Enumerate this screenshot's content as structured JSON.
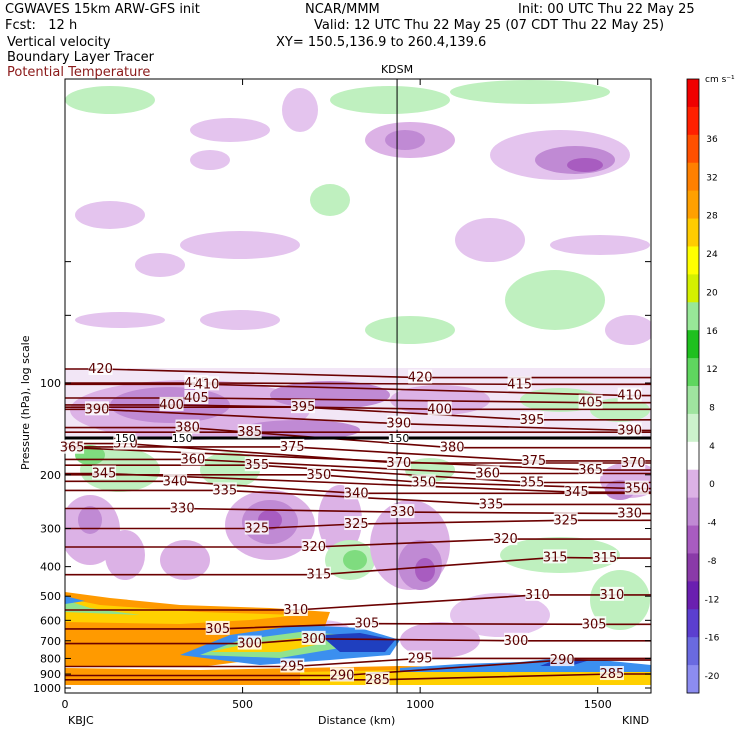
{
  "header": {
    "model": "CGWAVES 15km ARW-GFS init",
    "org": "NCAR/MMM",
    "init": "Init: 00 UTC Thu 22 May 25",
    "fcst": "Fcst:   12 h",
    "valid": "Valid: 12 UTC Thu 22 May 25 (07 CDT Thu 22 May 25)",
    "field1": "Vertical velocity",
    "field2": "Boundary Layer Tracer",
    "field3": "Potential Temperature",
    "xy": "XY= 150.5,136.9 to 260.4,139.6"
  },
  "colors": {
    "theta_contour": "#6b0000",
    "title_red": "#8b1a1a"
  },
  "chart_data": {
    "type": "cross-section",
    "xlabel": "Distance (km)",
    "ylabel": "Pressure (hPa), log scale",
    "xlim": [
      0,
      1650
    ],
    "x_ticks": [
      0,
      500,
      1000,
      1500
    ],
    "y_ticks": [
      100,
      200,
      300,
      400,
      500,
      600,
      700,
      800,
      900,
      1000
    ],
    "y_scale": "log",
    "left_station": "KBJC",
    "right_station": "KIND",
    "marker_station": "KDSM",
    "marker_x_km": 935,
    "colorbar": {
      "unit": "cm s⁻¹",
      "levels": [
        -20,
        -16,
        -12,
        -8,
        -4,
        0,
        4,
        8,
        12,
        16,
        20,
        24,
        28,
        32,
        36
      ],
      "colors": [
        "#8c8cf0",
        "#6a6ae0",
        "#5b3fcf",
        "#6a1fb0",
        "#8a3aa8",
        "#a85cc0",
        "#c08ad4",
        "#dcb2e6",
        "#ffffff",
        "#cdf2cd",
        "#9fe49f",
        "#5fd65f",
        "#1fc01f",
        "#98e898",
        "#d4f000",
        "#ffff00",
        "#ffcc00",
        "#ffa000",
        "#ff8000",
        "#ff5000",
        "#ff2000",
        "#f00000"
      ]
    },
    "theta_labels": [
      {
        "x": 100,
        "p": 90,
        "v": "420"
      },
      {
        "x": 90,
        "p": 122,
        "v": "390"
      },
      {
        "x": 370,
        "p": 100,
        "v": "415"
      },
      {
        "x": 400,
        "p": 101,
        "v": "410"
      },
      {
        "x": 1000,
        "p": 96,
        "v": "420"
      },
      {
        "x": 1280,
        "p": 101,
        "v": "415"
      },
      {
        "x": 1590,
        "p": 110,
        "v": "410"
      },
      {
        "x": 1480,
        "p": 116,
        "v": "405"
      },
      {
        "x": 370,
        "p": 112,
        "v": "405"
      },
      {
        "x": 300,
        "p": 118,
        "v": "400"
      },
      {
        "x": 1055,
        "p": 122,
        "v": "400"
      },
      {
        "x": 940,
        "p": 136,
        "v": "390"
      },
      {
        "x": 670,
        "p": 120,
        "v": "395"
      },
      {
        "x": 1315,
        "p": 132,
        "v": "395"
      },
      {
        "x": 1590,
        "p": 143,
        "v": "390"
      },
      {
        "x": 345,
        "p": 140,
        "v": "380"
      },
      {
        "x": 520,
        "p": 145,
        "v": "385"
      },
      {
        "x": 170,
        "p": 158,
        "v": "370"
      },
      {
        "x": 20,
        "p": 163,
        "v": "365"
      },
      {
        "x": 360,
        "p": 178,
        "v": "360"
      },
      {
        "x": 640,
        "p": 162,
        "v": "375"
      },
      {
        "x": 1090,
        "p": 163,
        "v": "380"
      },
      {
        "x": 940,
        "p": 183,
        "v": "370"
      },
      {
        "x": 1320,
        "p": 180,
        "v": "375"
      },
      {
        "x": 1480,
        "p": 193,
        "v": "365"
      },
      {
        "x": 1600,
        "p": 183,
        "v": "370"
      },
      {
        "x": 540,
        "p": 186,
        "v": "355"
      },
      {
        "x": 1190,
        "p": 198,
        "v": "360"
      },
      {
        "x": 110,
        "p": 198,
        "v": "345"
      },
      {
        "x": 310,
        "p": 210,
        "v": "340"
      },
      {
        "x": 715,
        "p": 200,
        "v": "350"
      },
      {
        "x": 1010,
        "p": 212,
        "v": "350"
      },
      {
        "x": 1315,
        "p": 212,
        "v": "355"
      },
      {
        "x": 1440,
        "p": 228,
        "v": "345"
      },
      {
        "x": 1610,
        "p": 222,
        "v": "350"
      },
      {
        "x": 450,
        "p": 225,
        "v": "335"
      },
      {
        "x": 820,
        "p": 230,
        "v": "340"
      },
      {
        "x": 1200,
        "p": 250,
        "v": "335"
      },
      {
        "x": 1590,
        "p": 268,
        "v": "330"
      },
      {
        "x": 330,
        "p": 258,
        "v": "330"
      },
      {
        "x": 950,
        "p": 265,
        "v": "330"
      },
      {
        "x": 1410,
        "p": 282,
        "v": "325"
      },
      {
        "x": 540,
        "p": 300,
        "v": "325"
      },
      {
        "x": 820,
        "p": 290,
        "v": "325"
      },
      {
        "x": 700,
        "p": 345,
        "v": "320"
      },
      {
        "x": 1240,
        "p": 325,
        "v": "320"
      },
      {
        "x": 1380,
        "p": 373,
        "v": "315"
      },
      {
        "x": 1520,
        "p": 375,
        "v": "315"
      },
      {
        "x": 715,
        "p": 425,
        "v": "315"
      },
      {
        "x": 1330,
        "p": 495,
        "v": "310"
      },
      {
        "x": 1540,
        "p": 495,
        "v": "310"
      },
      {
        "x": 650,
        "p": 555,
        "v": "310"
      },
      {
        "x": 850,
        "p": 615,
        "v": "305"
      },
      {
        "x": 1490,
        "p": 618,
        "v": "305"
      },
      {
        "x": 430,
        "p": 640,
        "v": "305"
      },
      {
        "x": 1270,
        "p": 700,
        "v": "300"
      },
      {
        "x": 700,
        "p": 690,
        "v": "300"
      },
      {
        "x": 520,
        "p": 715,
        "v": "300"
      },
      {
        "x": 1000,
        "p": 800,
        "v": "295"
      },
      {
        "x": 640,
        "p": 850,
        "v": "295"
      },
      {
        "x": 1400,
        "p": 810,
        "v": "290"
      },
      {
        "x": 780,
        "p": 910,
        "v": "290"
      },
      {
        "x": 880,
        "p": 940,
        "v": "285"
      },
      {
        "x": 1540,
        "p": 900,
        "v": "285"
      }
    ],
    "tracer_labels": [
      {
        "x": 170,
        "p": 155,
        "v": "150"
      },
      {
        "x": 330,
        "p": 155,
        "v": "150"
      },
      {
        "x": 940,
        "p": 155,
        "v": "150"
      }
    ]
  }
}
